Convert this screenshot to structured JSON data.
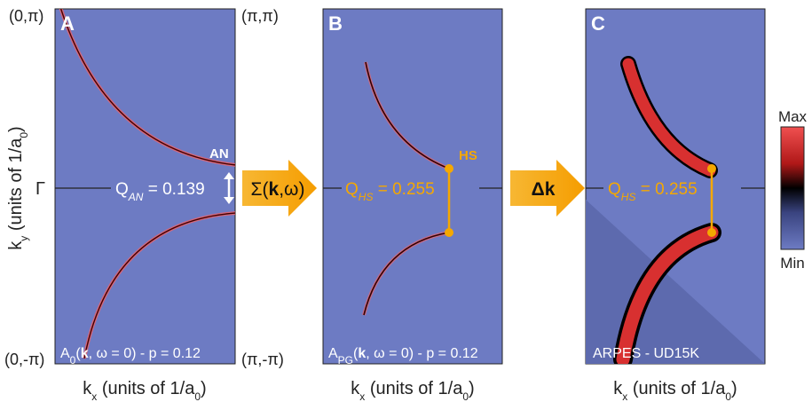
{
  "corners": {
    "top_left": "(0,π)",
    "top_right": "(π,π)",
    "bottom_left": "(0,-π)",
    "bottom_right": "(π,-π)"
  },
  "y_label": [
    "k",
    "y",
    " (units of 1/a",
    "0",
    ")"
  ],
  "gamma": "Γ",
  "panels": [
    {
      "letter": "A",
      "x_label": [
        "k",
        "x",
        " (units of 1/a",
        "0",
        ")"
      ],
      "caption": [
        "A",
        "0",
        "(",
        "k",
        ", ω = 0) - p = 0.12"
      ],
      "q": [
        "Q",
        "AN",
        " = 0.139"
      ],
      "point": "AN"
    },
    {
      "letter": "B",
      "x_label": [
        "k",
        "x",
        " (units of 1/a",
        "0",
        ")"
      ],
      "caption": [
        "A",
        "PG",
        "(",
        "k",
        ", ω = 0) - p = 0.12"
      ],
      "q": [
        "Q",
        "HS",
        " = 0.255"
      ],
      "point": "HS"
    },
    {
      "letter": "C",
      "x_label": [
        "k",
        "x",
        " (units of 1/a",
        "0",
        ")"
      ],
      "caption": [
        "ARPES - UD15K"
      ],
      "q": [
        "Q",
        "HS",
        " = 0.255"
      ]
    }
  ],
  "arrows": [
    [
      "Σ(",
      "k",
      ",ω)"
    ],
    [
      "Δ",
      "k"
    ]
  ],
  "colorbar": {
    "max": "Max",
    "min": "Min"
  }
}
